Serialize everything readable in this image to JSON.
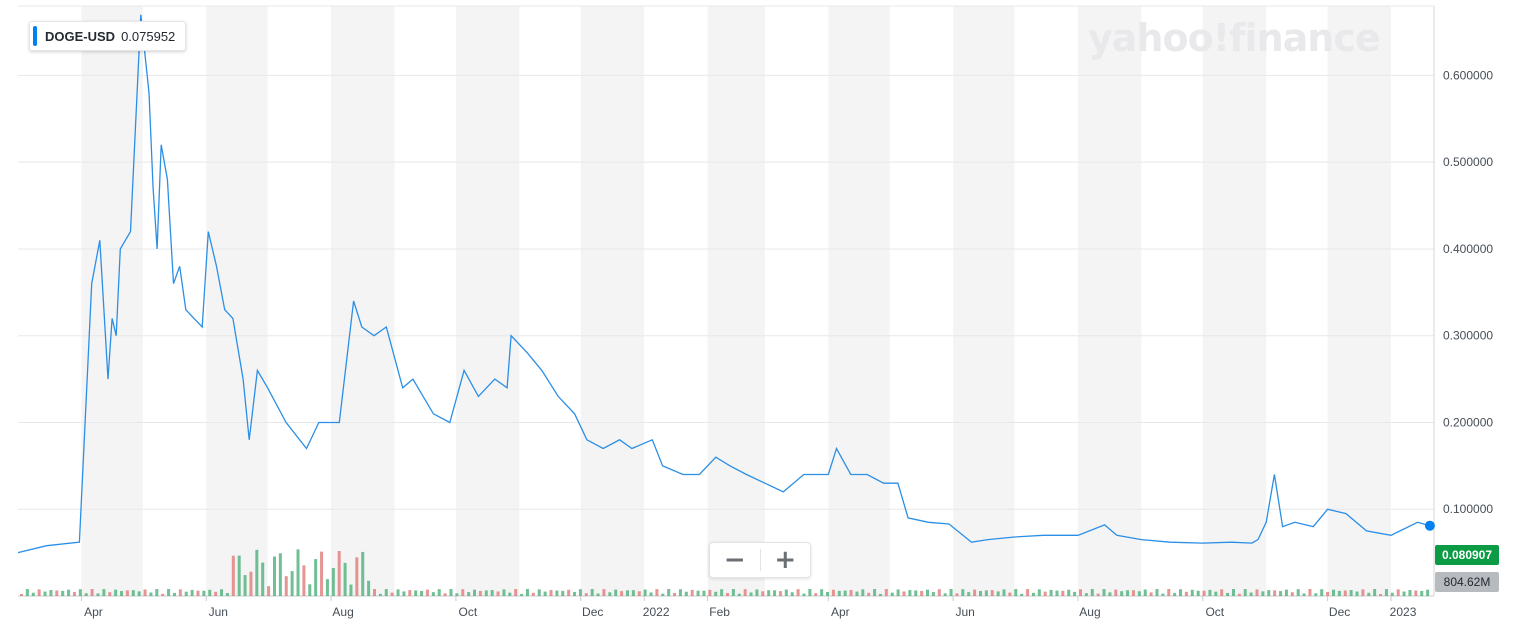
{
  "ticker": {
    "symbol": "DOGE-USD",
    "value": "0.075952"
  },
  "logo": "yahoo!finance",
  "price_badge": "0.080907",
  "volume_badge": "804.62M",
  "zoom": {
    "minus": "−",
    "plus": "+"
  },
  "colors": {
    "line": "#2b8fe6",
    "volume_up": "#4caf7a",
    "volume_down": "#e07a7a",
    "shade": "#f4f4f5",
    "price_badge": "#0a9b44"
  },
  "chart_data": {
    "type": "line",
    "title": "",
    "xlabel": "",
    "ylabel": "",
    "ylim": [
      0,
      0.68
    ],
    "grid": true,
    "x_ticks": [
      "Apr",
      "Jun",
      "Aug",
      "Oct",
      "Dec",
      "2022",
      "Feb",
      "Apr",
      "Jun",
      "Aug",
      "Oct",
      "Dec",
      "2023"
    ],
    "y_ticks": [
      "0.100000",
      "0.200000",
      "0.300000",
      "0.400000",
      "0.500000",
      "0.600000"
    ],
    "series": [
      {
        "values_note": "",
        "x": [
          "2021-03-01",
          "2021-03-15",
          "2021-03-31",
          "2021-04-06",
          "2021-04-10",
          "2021-04-14",
          "2021-04-16",
          "2021-04-18",
          "2021-04-20",
          "2021-04-25",
          "2021-04-30",
          "2021-05-04",
          "2021-05-06",
          "2021-05-08",
          "2021-05-10",
          "2021-05-13",
          "2021-05-16",
          "2021-05-19",
          "2021-05-22",
          "2021-05-26",
          "2021-05-30",
          "2021-06-02",
          "2021-06-06",
          "2021-06-10",
          "2021-06-14",
          "2021-06-19",
          "2021-06-22",
          "2021-06-26",
          "2021-07-01",
          "2021-07-10",
          "2021-07-20",
          "2021-07-26",
          "2021-08-05",
          "2021-08-12",
          "2021-08-16",
          "2021-08-22",
          "2021-08-28",
          "2021-09-05",
          "2021-09-10",
          "2021-09-20",
          "2021-09-28",
          "2021-10-05",
          "2021-10-12",
          "2021-10-20",
          "2021-10-26",
          "2021-10-28",
          "2021-11-05",
          "2021-11-12",
          "2021-11-20",
          "2021-11-28",
          "2021-12-04",
          "2021-12-12",
          "2021-12-20",
          "2021-12-26",
          "2022-01-05",
          "2022-01-10",
          "2022-01-20",
          "2022-01-28",
          "2022-02-05",
          "2022-02-12",
          "2022-02-20",
          "2022-03-01",
          "2022-03-10",
          "2022-03-20",
          "2022-04-01",
          "2022-04-05",
          "2022-04-12",
          "2022-04-20",
          "2022-04-28",
          "2022-05-05",
          "2022-05-10",
          "2022-05-20",
          "2022-05-30",
          "2022-06-10",
          "2022-06-18",
          "2022-07-01",
          "2022-07-15",
          "2022-08-01",
          "2022-08-14",
          "2022-08-20",
          "2022-09-01",
          "2022-09-15",
          "2022-10-01",
          "2022-10-15",
          "2022-10-25",
          "2022-10-28",
          "2022-11-01",
          "2022-11-05",
          "2022-11-09",
          "2022-11-15",
          "2022-11-24",
          "2022-12-01",
          "2022-12-10",
          "2022-12-20",
          "2023-01-01",
          "2023-01-14",
          "2023-01-20"
        ],
        "values": [
          0.05,
          0.058,
          0.062,
          0.36,
          0.41,
          0.25,
          0.32,
          0.3,
          0.4,
          0.42,
          0.67,
          0.58,
          0.47,
          0.4,
          0.52,
          0.48,
          0.36,
          0.38,
          0.33,
          0.32,
          0.31,
          0.42,
          0.38,
          0.33,
          0.32,
          0.25,
          0.18,
          0.26,
          0.24,
          0.2,
          0.17,
          0.2,
          0.2,
          0.34,
          0.31,
          0.3,
          0.31,
          0.24,
          0.25,
          0.21,
          0.2,
          0.26,
          0.23,
          0.25,
          0.24,
          0.3,
          0.28,
          0.26,
          0.23,
          0.21,
          0.18,
          0.17,
          0.18,
          0.17,
          0.18,
          0.15,
          0.14,
          0.14,
          0.16,
          0.15,
          0.14,
          0.13,
          0.12,
          0.14,
          0.14,
          0.17,
          0.14,
          0.14,
          0.13,
          0.13,
          0.09,
          0.085,
          0.083,
          0.062,
          0.065,
          0.068,
          0.07,
          0.07,
          0.082,
          0.07,
          0.065,
          0.062,
          0.061,
          0.062,
          0.061,
          0.065,
          0.085,
          0.14,
          0.08,
          0.085,
          0.08,
          0.1,
          0.095,
          0.075,
          0.07,
          0.085,
          0.081
        ]
      }
    ]
  }
}
